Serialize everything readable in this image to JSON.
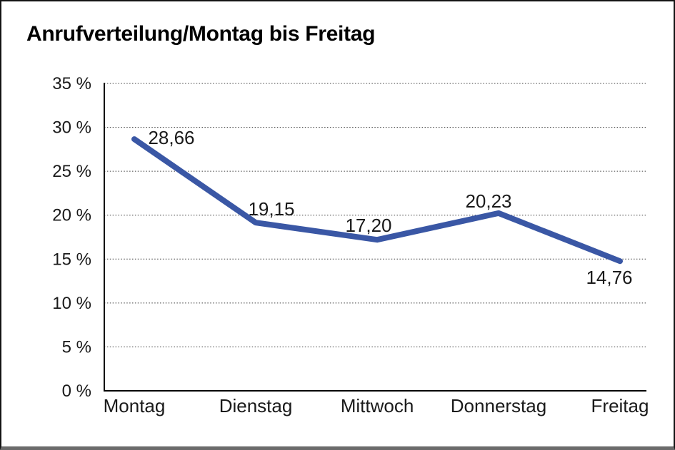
{
  "chart_data": {
    "type": "line",
    "title": "Anrufverteilung/Montag bis Freitag",
    "categories": [
      "Montag",
      "Dienstag",
      "Mittwoch",
      "Donnerstag",
      "Freitag"
    ],
    "values": [
      28.66,
      19.15,
      17.2,
      20.23,
      14.76
    ],
    "value_labels": [
      "28,66",
      "19,15",
      "17,20",
      "20,23",
      "14,76"
    ],
    "xlabel": "",
    "ylabel": "",
    "ylim": [
      0,
      35
    ],
    "y_tick_step": 5,
    "y_tick_labels": [
      "0 %",
      "5 %",
      "10 %",
      "15 %",
      "20 %",
      "25 %",
      "30 %",
      "35 %"
    ],
    "grid": "horizontal-dotted",
    "legend": "none",
    "line_color": "#3a57a5",
    "axis_color": "#000000",
    "text_color": "#1a1a1a"
  }
}
